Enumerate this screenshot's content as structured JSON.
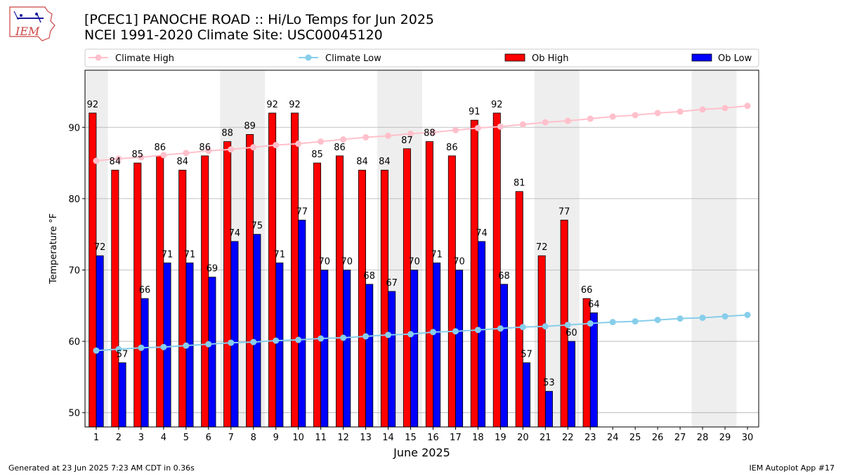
{
  "title": {
    "line1": "[PCEC1] PANOCHE ROAD :: Hi/Lo Temps for Jun 2025",
    "line2": "NCEI 1991-2020 Climate Site: USC00045120"
  },
  "logo": {
    "text": "IEM"
  },
  "footer": {
    "left": "Generated at 23 Jun 2025 7:23 AM CDT in 0.36s",
    "right": "IEM Autoplot App #17"
  },
  "colors": {
    "climate_high": "#ffc0cb",
    "climate_low": "#87ceeb",
    "ob_high": "#ff0000",
    "ob_low": "#0000ff",
    "weekend": "#eeeeee",
    "grid": "#b0b0b0"
  },
  "chart_data": {
    "type": "bar",
    "title": "[PCEC1] PANOCHE ROAD :: Hi/Lo Temps for Jun 2025",
    "xlabel": "June 2025",
    "ylabel": "Temperature °F",
    "xlim": [
      0.5,
      30.5
    ],
    "ylim": [
      48,
      98
    ],
    "yticks": [
      50,
      60,
      70,
      80,
      90
    ],
    "grid": true,
    "legend": {
      "placement": "top",
      "entries": [
        "Climate High",
        "Climate Low",
        "Ob High",
        "Ob Low"
      ]
    },
    "days": [
      1,
      2,
      3,
      4,
      5,
      6,
      7,
      8,
      9,
      10,
      11,
      12,
      13,
      14,
      15,
      16,
      17,
      18,
      19,
      20,
      21,
      22,
      23,
      24,
      25,
      26,
      27,
      28,
      29,
      30
    ],
    "weekend_spans": [
      [
        0.5,
        1.5
      ],
      [
        6.5,
        8.5
      ],
      [
        13.5,
        15.5
      ],
      [
        20.5,
        22.5
      ],
      [
        27.5,
        29.5
      ]
    ],
    "series": [
      {
        "name": "Ob High",
        "kind": "bar",
        "values": [
          92,
          84,
          85,
          86,
          84,
          86,
          88,
          89,
          92,
          92,
          85,
          86,
          84,
          84,
          87,
          88,
          86,
          91,
          92,
          81,
          72,
          77,
          66
        ]
      },
      {
        "name": "Ob Low",
        "kind": "bar",
        "values": [
          72,
          57,
          66,
          71,
          71,
          69,
          74,
          75,
          71,
          77,
          70,
          70,
          68,
          67,
          70,
          71,
          70,
          74,
          68,
          57,
          53,
          60,
          64
        ]
      },
      {
        "name": "Climate High",
        "kind": "line",
        "values": [
          85.3,
          85.6,
          85.8,
          86.1,
          86.4,
          86.7,
          86.9,
          87.2,
          87.5,
          87.7,
          88.0,
          88.3,
          88.6,
          88.8,
          89.1,
          89.3,
          89.6,
          89.9,
          90.1,
          90.4,
          90.7,
          90.9,
          91.2,
          91.5,
          91.7,
          92.0,
          92.2,
          92.5,
          92.7,
          93.0
        ]
      },
      {
        "name": "Climate Low",
        "kind": "line",
        "values": [
          58.7,
          58.9,
          59.1,
          59.2,
          59.4,
          59.6,
          59.8,
          59.9,
          60.1,
          60.2,
          60.4,
          60.5,
          60.7,
          60.9,
          61.0,
          61.3,
          61.4,
          61.6,
          61.8,
          62.0,
          62.1,
          62.3,
          62.5,
          62.7,
          62.8,
          63.0,
          63.2,
          63.3,
          63.5,
          63.7
        ]
      }
    ]
  }
}
